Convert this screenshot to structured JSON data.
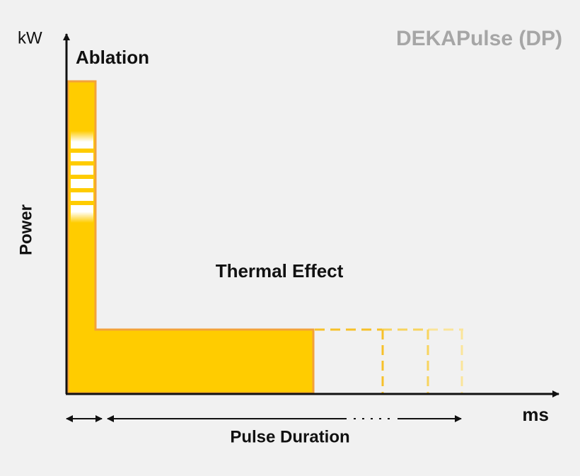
{
  "header": {
    "brand": "DEKAPulse (DP)"
  },
  "axes": {
    "y_unit": "kW",
    "y_label": "Power",
    "x_unit": "ms",
    "x_label": "Pulse Duration"
  },
  "regions": {
    "ablation": "Ablation",
    "thermal": "Thermal Effect"
  }
}
